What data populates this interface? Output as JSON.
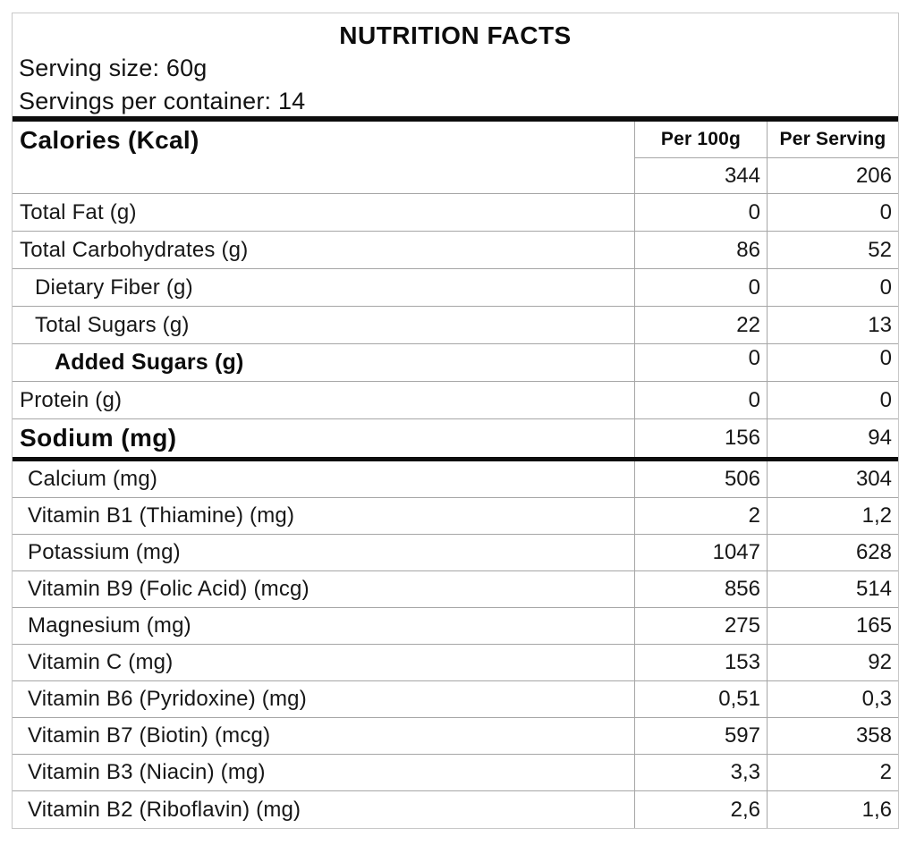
{
  "header": {
    "title": "NUTRITION FACTS",
    "serving_size": "Serving size: 60g",
    "servings_per_container": "Servings per container: 14"
  },
  "table": {
    "row_header": "Calories (Kcal)",
    "col_per_100g": "Per 100g",
    "col_per_serving": "Per Serving",
    "calories": {
      "per_100g": "344",
      "per_serving": "206"
    },
    "rows": [
      {
        "label": "Total Fat (g)",
        "per_100g": "0",
        "per_serving": "0"
      },
      {
        "label": "Total Carbohydrates (g)",
        "per_100g": "86",
        "per_serving": "52"
      },
      {
        "label": "Dietary Fiber (g)",
        "per_100g": "0",
        "per_serving": "0"
      },
      {
        "label": "Total Sugars (g)",
        "per_100g": "22",
        "per_serving": "13"
      },
      {
        "label": "Added Sugars (g)",
        "per_100g": "0",
        "per_serving": "0"
      },
      {
        "label": "Protein (g)",
        "per_100g": "0",
        "per_serving": "0"
      },
      {
        "label": "Sodium (mg)",
        "per_100g": "156",
        "per_serving": "94"
      },
      {
        "label": "Calcium (mg)",
        "per_100g": "506",
        "per_serving": "304"
      },
      {
        "label": "Vitamin B1 (Thiamine) (mg)",
        "per_100g": "2",
        "per_serving": "1,2"
      },
      {
        "label": "Potassium (mg)",
        "per_100g": "1047",
        "per_serving": "628"
      },
      {
        "label": "Vitamin B9 (Folic Acid) (mcg)",
        "per_100g": "856",
        "per_serving": "514"
      },
      {
        "label": "Magnesium (mg)",
        "per_100g": "275",
        "per_serving": "165"
      },
      {
        "label": "Vitamin C (mg)",
        "per_100g": "153",
        "per_serving": "92"
      },
      {
        "label": "Vitamin B6 (Pyridoxine) (mg)",
        "per_100g": "0,51",
        "per_serving": "0,3"
      },
      {
        "label": "Vitamin B7 (Biotin) (mcg)",
        "per_100g": "597",
        "per_serving": "358"
      },
      {
        "label": "Vitamin B3 (Niacin) (mg)",
        "per_100g": "3,3",
        "per_serving": "2"
      },
      {
        "label": "Vitamin B2 (Riboflavin) (mg)",
        "per_100g": "2,6",
        "per_serving": "1,6"
      }
    ]
  },
  "colors": {
    "background": "#ffffff",
    "text": "#161616",
    "grid_line": "#a6a6a6",
    "outer_border": "#c8c8c8",
    "thick_rule": "#0d0d0d"
  }
}
